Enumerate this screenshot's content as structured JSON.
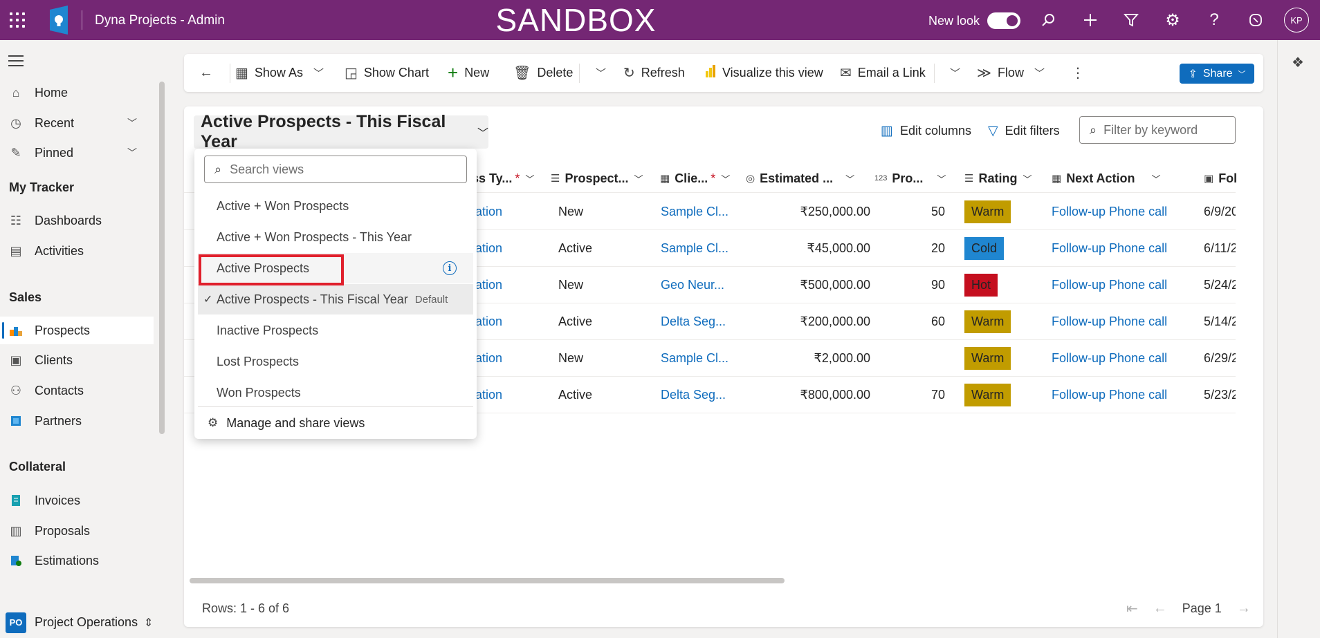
{
  "header": {
    "app_title": "Dyna Projects - Admin",
    "environment_banner": "SANDBOX",
    "new_look_label": "New look",
    "user_initials": "KP"
  },
  "sidebar": {
    "items": [
      {
        "label": "Home",
        "icon": "home-icon"
      },
      {
        "label": "Recent",
        "icon": "clock-icon"
      },
      {
        "label": "Pinned",
        "icon": "pin-icon"
      }
    ],
    "groups": [
      {
        "title": "My Tracker",
        "items": [
          {
            "label": "Dashboards"
          },
          {
            "label": "Activities"
          }
        ]
      },
      {
        "title": "Sales",
        "items": [
          {
            "label": "Prospects",
            "selected": true
          },
          {
            "label": "Clients"
          },
          {
            "label": "Contacts"
          },
          {
            "label": "Partners"
          }
        ]
      },
      {
        "title": "Collateral",
        "items": [
          {
            "label": "Invoices"
          },
          {
            "label": "Proposals"
          },
          {
            "label": "Estimations"
          }
        ]
      }
    ],
    "area": {
      "badge": "PO",
      "label": "Project Operations"
    }
  },
  "commandbar": {
    "show_as": "Show As",
    "show_chart": "Show Chart",
    "new": "New",
    "delete": "Delete",
    "refresh": "Refresh",
    "visualize": "Visualize this view",
    "email_link": "Email a Link",
    "flow": "Flow",
    "share": "Share"
  },
  "view": {
    "title": "Active Prospects - This Fiscal Year",
    "edit_columns": "Edit columns",
    "edit_filters": "Edit filters",
    "filter_placeholder": "Filter by keyword"
  },
  "views_dropdown": {
    "search_placeholder": "Search views",
    "items": [
      {
        "label": "Active + Won Prospects"
      },
      {
        "label": "Active + Won Prospects - This Year"
      },
      {
        "label": "Active Prospects"
      },
      {
        "label": "Active Prospects - This Fiscal Year",
        "default_label": "Default"
      },
      {
        "label": "Inactive Prospects"
      },
      {
        "label": "Lost Prospects"
      },
      {
        "label": "Won Prospects"
      }
    ],
    "manage": "Manage and share views"
  },
  "table": {
    "columns": [
      "ss Ty...",
      "Prospect...",
      "Clie...",
      "Estimated ...",
      "Pro...",
      "Rating",
      "Next Action",
      "Fol"
    ],
    "rows": [
      {
        "type": "tation",
        "status": "New",
        "client": "Sample Cl...",
        "estimated": "₹250,000.00",
        "prob": "50",
        "rating": "Warm",
        "next_action": "Follow-up Phone call",
        "followup": "6/9/20"
      },
      {
        "type": "tation",
        "status": "Active",
        "client": "Sample Cl...",
        "estimated": "₹45,000.00",
        "prob": "20",
        "rating": "Cold",
        "next_action": "Follow-up Phone call",
        "followup": "6/11/2"
      },
      {
        "type": "tation",
        "status": "New",
        "client": "Geo Neur...",
        "estimated": "₹500,000.00",
        "prob": "90",
        "rating": "Hot",
        "next_action": "Follow-up Phone call",
        "followup": "5/24/2"
      },
      {
        "type": "tation",
        "status": "Active",
        "client": "Delta Seg...",
        "estimated": "₹200,000.00",
        "prob": "60",
        "rating": "Warm",
        "next_action": "Follow-up Phone call",
        "followup": "5/14/2"
      },
      {
        "type": "tation",
        "status": "New",
        "client": "Sample Cl...",
        "estimated": "₹2,000.00",
        "prob": "",
        "rating": "Warm",
        "next_action": "Follow-up Phone call",
        "followup": "6/29/2"
      },
      {
        "type": "tation",
        "status": "Active",
        "client": "Delta Seg...",
        "estimated": "₹800,000.00",
        "prob": "70",
        "rating": "Warm",
        "next_action": "Follow-up Phone call",
        "followup": "5/23/2"
      }
    ],
    "rating_colors": {
      "Warm": "#c19c00",
      "Cold": "#1f86d0",
      "Hot": "#c50f1f"
    }
  },
  "footer": {
    "rows_label": "Rows: 1 - 6 of 6",
    "page_label": "Page 1"
  },
  "colors": {
    "header_bg": "#742774",
    "accent": "#0f6cbd",
    "highlight": "#e0202c"
  }
}
